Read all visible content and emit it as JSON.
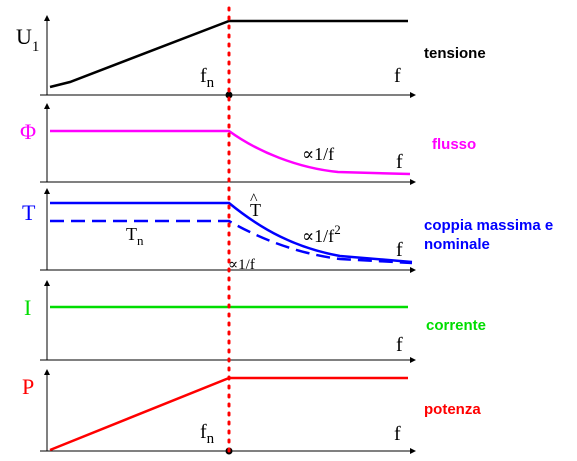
{
  "colors": {
    "axis": "#000000",
    "tension": "#000000",
    "flux": "#ff00ff",
    "torque": "#0000ff",
    "current": "#00dd00",
    "power": "#ff0000",
    "cutoff": "#ff0000"
  },
  "panels": {
    "tension": {
      "symbol": "U",
      "symbol_sub": "1",
      "fn_label": "f",
      "fn_sub": "n",
      "x_label": "f",
      "caption": "tensione"
    },
    "flux": {
      "symbol": "Φ",
      "proportional": "∝1/f",
      "x_label": "f",
      "caption": "flusso"
    },
    "torque": {
      "symbol": "T",
      "max_label": "T",
      "max_hat": "^",
      "nominal_label": "T",
      "nominal_sub": "n",
      "proportional_sq": "∝1/f",
      "proportional_sq_exp": "2",
      "proportional": "∝1/f",
      "x_label": "f",
      "caption_line1": "coppia massima e",
      "caption_line2": "nominale"
    },
    "current": {
      "symbol": "I",
      "x_label": "f",
      "caption": "corrente"
    },
    "power": {
      "symbol": "P",
      "fn_label": "f",
      "fn_sub": "n",
      "x_label": "f",
      "caption": "potenza"
    }
  }
}
